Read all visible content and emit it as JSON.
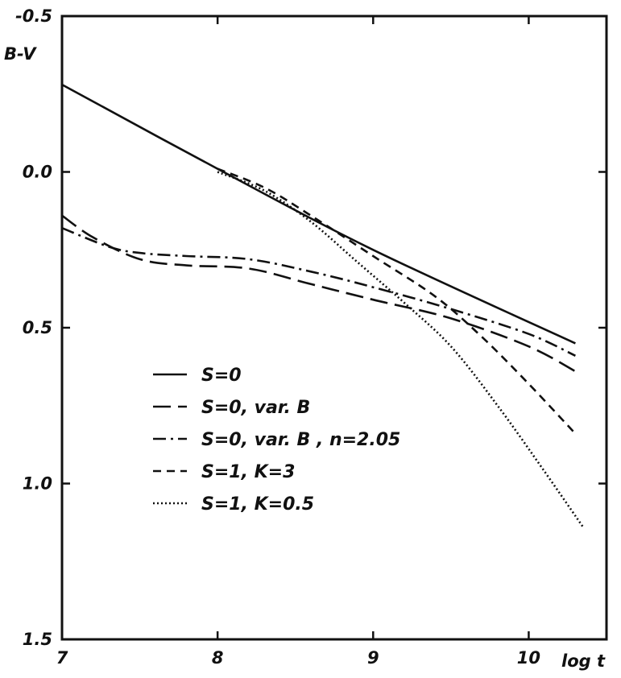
{
  "chart_data": {
    "type": "line",
    "title": "",
    "xlabel": "log t",
    "ylabel": "B-V",
    "xlim": [
      7,
      10.5
    ],
    "ylim": [
      1.5,
      -0.5
    ],
    "y_inverted": true,
    "grid": false,
    "legend_position": "lower-left",
    "x_ticks": [
      {
        "value": 7,
        "label": "7"
      },
      {
        "value": 8,
        "label": "8"
      },
      {
        "value": 9,
        "label": "9"
      },
      {
        "value": 10,
        "label": "10"
      }
    ],
    "y_ticks": [
      {
        "value": -0.5,
        "label": "-0.5"
      },
      {
        "value": 0.0,
        "label": "0.0"
      },
      {
        "value": 0.5,
        "label": "0.5"
      },
      {
        "value": 1.0,
        "label": "1.0"
      },
      {
        "value": 1.5,
        "label": "1.5"
      }
    ],
    "series": [
      {
        "name": "S=0",
        "style": "solid",
        "x": [
          7.0,
          8.0,
          9.0,
          10.3
        ],
        "y": [
          -0.28,
          -0.01,
          0.25,
          0.55
        ]
      },
      {
        "name": "S=0, var. B",
        "style": "long-dash",
        "x": [
          7.0,
          7.2,
          7.5,
          7.8,
          8.2,
          8.6,
          9.0,
          9.5,
          10.0,
          10.3
        ],
        "y": [
          0.14,
          0.21,
          0.28,
          0.3,
          0.31,
          0.36,
          0.41,
          0.47,
          0.56,
          0.64
        ]
      },
      {
        "name": "S=0, var. B, n=2.05",
        "style": "dash-dot",
        "x": [
          7.0,
          7.3,
          7.5,
          7.8,
          8.2,
          8.6,
          9.0,
          9.5,
          10.0,
          10.3
        ],
        "y": [
          0.18,
          0.24,
          0.26,
          0.27,
          0.28,
          0.32,
          0.37,
          0.44,
          0.52,
          0.59
        ]
      },
      {
        "name": "S=1, K=3",
        "style": "short-dash",
        "x": [
          8.0,
          8.3,
          8.6,
          9.0,
          9.4,
          9.7,
          10.0,
          10.3
        ],
        "y": [
          -0.01,
          0.05,
          0.14,
          0.27,
          0.4,
          0.53,
          0.68,
          0.84
        ]
      },
      {
        "name": "S=1, K=0.5",
        "style": "dotted",
        "x": [
          8.0,
          8.3,
          8.6,
          8.9,
          9.2,
          9.5,
          9.8,
          10.1,
          10.35
        ],
        "y": [
          0.0,
          0.06,
          0.16,
          0.29,
          0.42,
          0.56,
          0.75,
          0.96,
          1.14
        ]
      }
    ],
    "legend": [
      {
        "label": "S=0",
        "style": "solid"
      },
      {
        "label": "S=0, var. B",
        "style": "long-dash"
      },
      {
        "label": "S=0, var. B , n=2.05",
        "style": "dash-dot"
      },
      {
        "label": "S=1, K=3",
        "style": "short-dash"
      },
      {
        "label": "S=1, K=0.5",
        "style": "dotted"
      }
    ]
  }
}
